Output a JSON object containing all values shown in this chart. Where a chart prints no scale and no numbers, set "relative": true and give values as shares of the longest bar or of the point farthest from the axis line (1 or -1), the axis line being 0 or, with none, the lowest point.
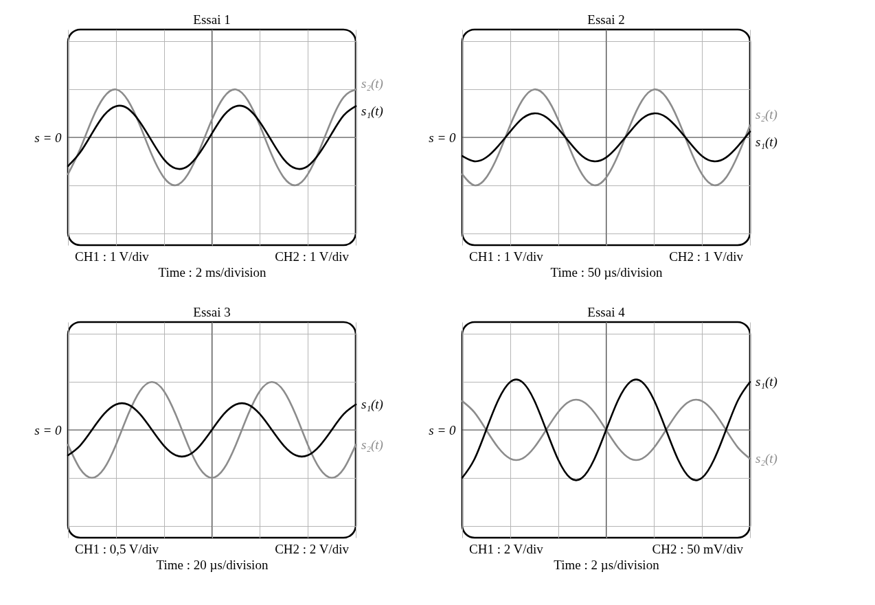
{
  "chart_data": [
    {
      "type": "line",
      "title": "Essai 1",
      "xlabel": "Time : 2 ms/division",
      "ylabel": "s = 0",
      "relative": true,
      "grid": true,
      "annotations": [
        "CH1 : 1 V/div",
        "CH2 : 1 V/div"
      ],
      "categories": [
        null,
        null,
        null,
        null,
        null,
        null,
        null,
        null,
        null,
        null,
        null,
        null,
        null,
        null,
        null,
        null,
        null,
        null,
        null,
        null,
        null,
        null,
        null,
        null,
        null
      ],
      "series": [
        {
          "name": "s₂(t)",
          "color": "#8c8c8c",
          "values": [
            -0.77,
            -0.25,
            0.37,
            0.84,
            1,
            0.77,
            0.25,
            -0.37,
            -0.84,
            -1,
            -0.77,
            -0.25,
            0.37,
            0.84,
            1,
            0.77,
            0.25,
            -0.37,
            -0.84,
            -1,
            -0.77,
            -0.25,
            0.37,
            0.84,
            1
          ]
        },
        {
          "name": "s₁(t)",
          "color": "#000000",
          "values": [
            -0.6,
            -0.32,
            0.08,
            0.46,
            0.65,
            0.6,
            0.32,
            -0.08,
            -0.46,
            -0.65,
            -0.6,
            -0.32,
            0.08,
            0.46,
            0.65,
            0.6,
            0.32,
            -0.08,
            -0.46,
            -0.65,
            -0.6,
            -0.32,
            0.08,
            0.46,
            0.65
          ]
        }
      ]
    },
    {
      "type": "line",
      "title": "Essai 2",
      "xlabel": "Time : 50 µs/division",
      "ylabel": "s = 0",
      "relative": true,
      "grid": true,
      "annotations": [
        "CH1 : 1 V/div",
        "CH2 : 1 V/div"
      ],
      "categories": [
        null,
        null,
        null,
        null,
        null,
        null,
        null,
        null,
        null,
        null,
        null,
        null,
        null,
        null,
        null,
        null,
        null,
        null,
        null,
        null,
        null,
        null,
        null,
        null,
        null
      ],
      "series": [
        {
          "name": "s₂(t)",
          "color": "#8c8c8c",
          "values": [
            -0.77,
            -1,
            -0.84,
            -0.37,
            0.25,
            0.77,
            1,
            0.84,
            0.37,
            -0.25,
            -0.77,
            -1,
            -0.84,
            -0.37,
            0.25,
            0.77,
            1,
            0.84,
            0.37,
            -0.25,
            -0.77,
            -1,
            -0.84,
            -0.37,
            0.25
          ]
        },
        {
          "name": "s₁(t)",
          "color": "#000000",
          "values": [
            -0.39,
            -0.5,
            -0.42,
            -0.18,
            0.12,
            0.39,
            0.5,
            0.42,
            0.18,
            -0.12,
            -0.39,
            -0.5,
            -0.42,
            -0.18,
            0.12,
            0.39,
            0.5,
            0.42,
            0.18,
            -0.12,
            -0.39,
            -0.5,
            -0.42,
            -0.18,
            0.12
          ]
        }
      ]
    },
    {
      "type": "line",
      "title": "Essai 3",
      "xlabel": "Time : 20 µs/division",
      "ylabel": "s = 0",
      "relative": true,
      "grid": true,
      "annotations": [
        "CH1 : 0,5 V/div",
        "CH2 : 2 V/div"
      ],
      "categories": [
        null,
        null,
        null,
        null,
        null,
        null,
        null,
        null,
        null,
        null,
        null,
        null,
        null,
        null,
        null,
        null,
        null,
        null,
        null,
        null,
        null,
        null,
        null,
        null,
        null
      ],
      "series": [
        {
          "name": "s₂(t)",
          "color": "#8c8c8c",
          "values": [
            -0.31,
            -0.81,
            -1,
            -0.81,
            -0.31,
            0.31,
            0.81,
            1,
            0.81,
            0.31,
            -0.31,
            -0.81,
            -1,
            -0.81,
            -0.31,
            0.31,
            0.81,
            1,
            0.81,
            0.31,
            -0.31,
            -0.81,
            -1,
            -0.81,
            -0.31
          ]
        },
        {
          "name": "s₁(t)",
          "color": "#000000",
          "values": [
            -0.53,
            -0.33,
            0,
            0.33,
            0.53,
            0.53,
            0.33,
            0,
            -0.33,
            -0.53,
            -0.53,
            -0.33,
            0,
            0.33,
            0.53,
            0.53,
            0.33,
            0,
            -0.33,
            -0.53,
            -0.53,
            -0.33,
            0,
            0.33,
            0.53
          ]
        }
      ]
    },
    {
      "type": "line",
      "title": "Essai 4",
      "xlabel": "Time : 2 µs/division",
      "ylabel": "s = 0",
      "relative": true,
      "grid": true,
      "annotations": [
        "CH1 : 2 V/div",
        "CH2 : 50 mV/div"
      ],
      "categories": [
        null,
        null,
        null,
        null,
        null,
        null,
        null,
        null,
        null,
        null,
        null,
        null,
        null,
        null,
        null,
        null,
        null,
        null,
        null,
        null,
        null,
        null,
        null,
        null,
        null
      ],
      "series": [
        {
          "name": "s₂(t)",
          "color": "#8c8c8c",
          "values": [
            0.6,
            0.37,
            0,
            -0.37,
            -0.6,
            -0.6,
            -0.37,
            0,
            0.37,
            0.6,
            0.6,
            0.37,
            0,
            -0.37,
            -0.6,
            -0.6,
            -0.37,
            0,
            0.37,
            0.6,
            0.6,
            0.37,
            0,
            -0.37,
            -0.6
          ]
        },
        {
          "name": "s₁(t)",
          "color": "#000000",
          "values": [
            -1,
            -0.62,
            0,
            0.62,
            1,
            1,
            0.62,
            0,
            -0.62,
            -1,
            -1,
            -0.62,
            0,
            0.62,
            1,
            1,
            0.62,
            0,
            -0.62,
            -1,
            -1,
            -0.62,
            0,
            0.62,
            1
          ]
        }
      ]
    }
  ]
}
